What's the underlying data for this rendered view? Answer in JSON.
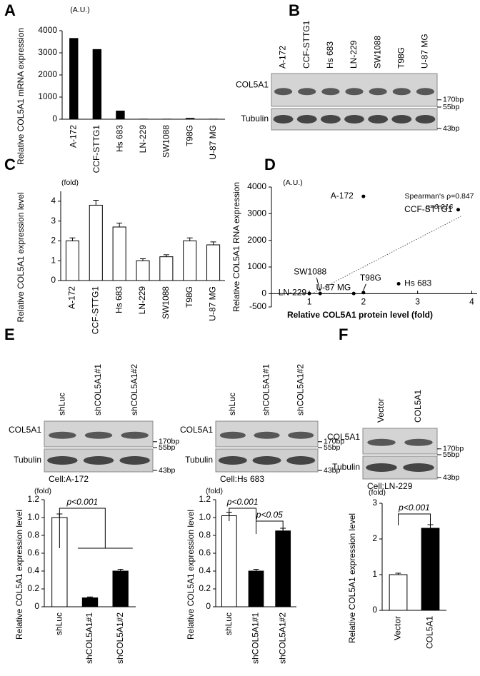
{
  "panel_labels": [
    "A",
    "B",
    "C",
    "D",
    "E",
    "F"
  ],
  "blots": [
    {
      "lanes": [
        "A-172",
        "CCF-STTG1",
        "Hs 683",
        "LN-229",
        "SW1088",
        "T98G",
        "U-87 MG"
      ],
      "rows": [
        "COL5A1",
        "Tubulin"
      ],
      "markers": [
        "170bp",
        "55bp",
        "43bp"
      ]
    },
    {
      "lanes": [
        "shLuc",
        "shCOL5A1#1",
        "shCOL5A1#2"
      ],
      "rows": [
        "COL5A1",
        "Tubulin"
      ],
      "markers": [
        "170bp",
        "55bp",
        "43bp"
      ],
      "cell": "Cell:A-172"
    },
    {
      "lanes": [
        "shLuc",
        "shCOL5A1#1",
        "shCOL5A1#2"
      ],
      "rows": [
        "COL5A1",
        "Tubulin"
      ],
      "markers": [
        "170bp",
        "55bp",
        "43bp"
      ],
      "cell": "Cell:Hs 683"
    },
    {
      "lanes": [
        "Vector",
        "COL5A1"
      ],
      "rows": [
        "COL5A1",
        "Tubulin"
      ],
      "markers": [
        "170bp",
        "55bp",
        "43bp"
      ],
      "cell": "Cell:LN-229"
    }
  ],
  "chart_data": [
    {
      "type": "bar",
      "ylabel": "Relative COL5A1 mRNA expression",
      "unit": "(A.U.)",
      "categories": [
        "A-172",
        "CCF-STTG1",
        "Hs 683",
        "LN-229",
        "SW1088",
        "T98G",
        "U-87 MG"
      ],
      "values": [
        3650,
        3150,
        370,
        5,
        5,
        40,
        5
      ],
      "color": "#000000",
      "ylim": [
        0,
        4000
      ],
      "yticks": [
        0,
        1000,
        2000,
        3000,
        4000
      ]
    },
    {
      "type": "bar",
      "ylabel": "Relative COL5A1 expression level",
      "unit": "(fold)",
      "categories": [
        "A-172",
        "CCF-STTG1",
        "Hs 683",
        "LN-229",
        "SW1088",
        "T98G",
        "U-87 MG"
      ],
      "values": [
        2.0,
        3.8,
        2.7,
        1.0,
        1.2,
        2.0,
        1.8
      ],
      "errors": [
        0.15,
        0.25,
        0.2,
        0.1,
        0.1,
        0.15,
        0.15
      ],
      "color": "#ffffff",
      "ylim": [
        0,
        4.5
      ],
      "yticks": [
        0,
        1,
        2,
        3,
        4
      ]
    },
    {
      "type": "scatter",
      "xlabel": "Relative COL5A1 protein level (fold)",
      "ylabel": "Relative COL5A1 RNA expression",
      "unit": "(A.U.)",
      "labels": [
        "A-172",
        "CCF-STTG1",
        "Hs 683",
        "LN-229",
        "SW1088",
        "T98G",
        "U-87 MG"
      ],
      "x": [
        2.0,
        3.75,
        2.65,
        1.0,
        1.2,
        2.0,
        1.82
      ],
      "y": [
        3650,
        3150,
        370,
        5,
        5,
        40,
        5
      ],
      "trendline": {
        "x": [
          1.0,
          3.8
        ],
        "y": [
          -50,
          2900
        ]
      },
      "annotations": [
        "Spearman's ρ=0.847",
        "p=0.016"
      ],
      "xlim": [
        0.3,
        4.1
      ],
      "xticks": [
        1,
        2,
        3,
        4
      ],
      "ylim": [
        -500,
        4000
      ],
      "yticks": [
        -500,
        0,
        1000,
        2000,
        3000,
        4000
      ]
    },
    {
      "type": "bar",
      "ylabel": "Relative COL5A1 expression level",
      "unit": "(fold)",
      "categories": [
        "shLuc",
        "shCOL5A1#1",
        "shCOL5A1#2"
      ],
      "values": [
        1.0,
        0.1,
        0.4
      ],
      "errors": [
        0.04,
        0.01,
        0.02
      ],
      "colors": [
        "#ffffff",
        "#000000",
        "#000000"
      ],
      "annotations": [
        "p<0.001"
      ],
      "ylim": [
        0,
        1.2
      ],
      "yticks": [
        0,
        0.2,
        0.4,
        0.6,
        0.8,
        {
          "value": 1,
          "label": "1.0"
        },
        1.2
      ]
    },
    {
      "type": "bar",
      "ylabel": "Relative COL5A1 expression level",
      "unit": "(fold)",
      "categories": [
        "shLuc",
        "shCOL5A1#1",
        "shCOL5A1#2"
      ],
      "values": [
        1.02,
        0.4,
        0.85
      ],
      "errors": [
        0.04,
        0.02,
        0.03
      ],
      "colors": [
        "#ffffff",
        "#000000",
        "#000000"
      ],
      "annotations": [
        "p<0.001",
        "p<0.05"
      ],
      "ylim": [
        0,
        1.2
      ],
      "yticks": [
        0,
        0.2,
        0.4,
        0.6,
        0.8,
        {
          "value": 1,
          "label": "1.0"
        },
        1.2
      ]
    },
    {
      "type": "bar",
      "ylabel": "Relative COL5A1 expression level",
      "unit": "(fold)",
      "categories": [
        "Vector",
        "COL5A1"
      ],
      "values": [
        1.0,
        2.3
      ],
      "errors": [
        0.04,
        0.1
      ],
      "colors": [
        "#ffffff",
        "#000000"
      ],
      "annotations": [
        "p<0.001"
      ],
      "ylim": [
        0,
        3
      ],
      "yticks": [
        0,
        1,
        2,
        3
      ]
    }
  ]
}
